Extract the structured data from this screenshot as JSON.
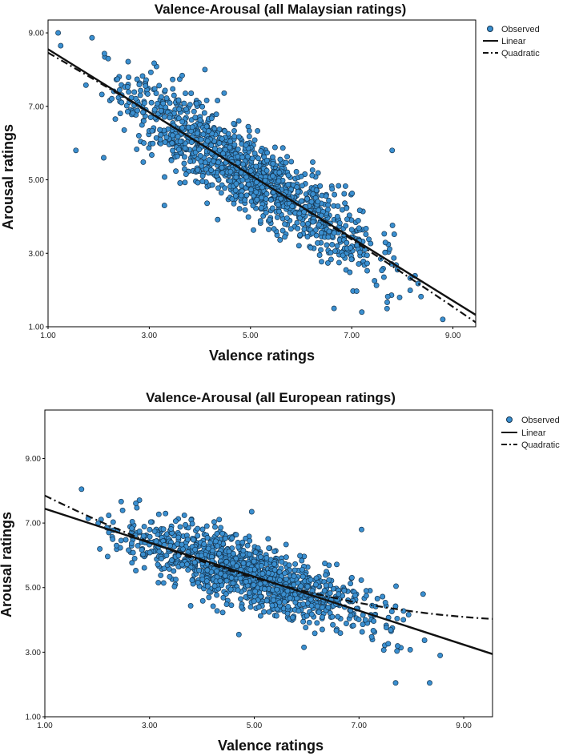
{
  "colors": {
    "point_fill": "#3a8fd0",
    "point_stroke": "#14344f",
    "line": "#111111"
  },
  "chart_data": [
    {
      "type": "scatter",
      "title": "Valence-Arousal (all Malaysian ratings)",
      "xlabel": "Valence ratings",
      "ylabel": "Arousal ratings",
      "xlim": [
        1.0,
        9.45
      ],
      "ylim": [
        1.0,
        9.35
      ],
      "x_ticks": [
        1.0,
        3.0,
        5.0,
        7.0,
        9.0
      ],
      "x_tick_labels": [
        "1.00",
        "3.00",
        "5.00",
        "7.00",
        "9.00"
      ],
      "y_ticks": [
        1.0,
        3.0,
        5.0,
        7.0,
        9.0
      ],
      "y_tick_labels": [
        "1.00",
        "3.00",
        "5.00",
        "7.00",
        "9.00"
      ],
      "legend": {
        "position": "top-right",
        "entries": [
          "Observed",
          "Linear",
          "Quadratic"
        ]
      },
      "grid": false,
      "observed": {
        "name": "Observed",
        "n_points": 1200,
        "trend_slope": -0.855,
        "trend_intercept": 9.4,
        "spread_sd": 0.55,
        "sample_points": [
          [
            1.2,
            9.0
          ],
          [
            1.25,
            8.65
          ],
          [
            1.55,
            5.8
          ],
          [
            4.1,
            8.0
          ],
          [
            7.8,
            5.8
          ],
          [
            6.65,
            1.5
          ],
          [
            7.2,
            1.4
          ],
          [
            8.8,
            1.2
          ],
          [
            2.1,
            5.6
          ],
          [
            3.3,
            4.3
          ]
        ]
      },
      "linear": {
        "name": "Linear",
        "intercept": 9.41,
        "slope": -0.8558,
        "x_range": [
          1.0,
          9.45
        ]
      },
      "quadratic": {
        "name": "Quadratic",
        "a": 9.25,
        "b": -0.78,
        "c": -0.0085,
        "x_range": [
          1.0,
          9.45
        ]
      }
    },
    {
      "type": "scatter",
      "title": "Valence-Arousal (all European ratings)",
      "xlabel": "Valence ratings",
      "ylabel": "Arousal ratings",
      "xlim": [
        1.0,
        9.55
      ],
      "ylim": [
        1.0,
        10.5
      ],
      "x_ticks": [
        1.0,
        3.0,
        5.0,
        7.0,
        9.0
      ],
      "x_tick_labels": [
        "1.00",
        "3.00",
        "5.00",
        "7.00",
        "9.00"
      ],
      "y_ticks": [
        1.0,
        3.0,
        5.0,
        7.0,
        9.0
      ],
      "y_tick_labels": [
        "1.00",
        "3.00",
        "5.00",
        "7.00",
        "9.00"
      ],
      "legend": {
        "position": "top-right",
        "entries": [
          "Observed",
          "Linear",
          "Quadratic"
        ]
      },
      "grid": false,
      "observed": {
        "name": "Observed",
        "n_points": 1200,
        "trend_slope": -0.52,
        "trend_intercept": 7.95,
        "spread_sd": 0.5,
        "sample_points": [
          [
            1.7,
            8.05
          ],
          [
            4.95,
            7.35
          ],
          [
            5.95,
            3.15
          ],
          [
            7.7,
            2.05
          ],
          [
            8.35,
            2.05
          ],
          [
            8.55,
            2.9
          ],
          [
            2.05,
            6.2
          ],
          [
            7.05,
            6.8
          ]
        ]
      },
      "linear": {
        "name": "Linear",
        "intercept": 7.97,
        "slope": -0.5264,
        "x_range": [
          1.0,
          9.55
        ]
      },
      "quadratic": {
        "name": "Quadratic",
        "a": 8.7,
        "b": -0.89,
        "c": 0.042,
        "x_range": [
          1.0,
          9.55
        ]
      }
    }
  ]
}
